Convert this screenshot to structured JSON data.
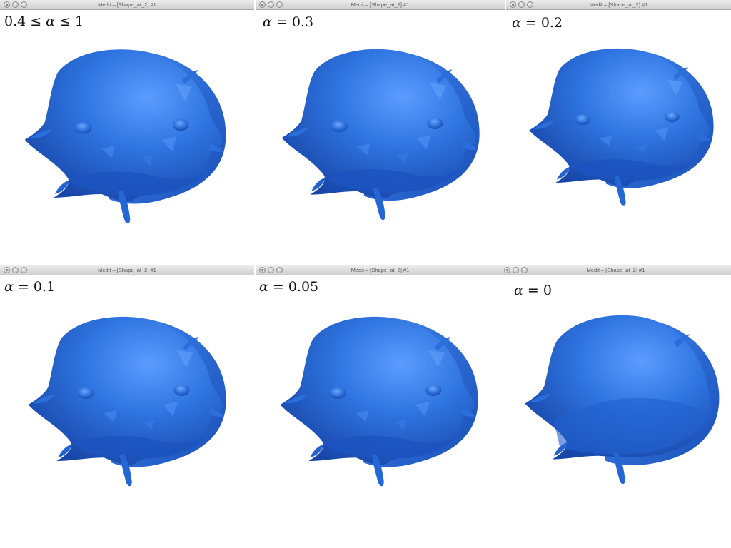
{
  "window_title": "Medit – [Shape_at_2] #1",
  "shape_color": "#2f74e0",
  "panels": [
    {
      "label_pre": "0.4 ≤ ",
      "label_var": "α",
      "label_post": " ≤ 1"
    },
    {
      "label_pre": "",
      "label_var": "α",
      "label_post": " = 0.3"
    },
    {
      "label_pre": "",
      "label_var": "α",
      "label_post": " = 0.2"
    },
    {
      "label_pre": "",
      "label_var": "α",
      "label_post": " = 0.1"
    },
    {
      "label_pre": "",
      "label_var": "α",
      "label_post": " = 0.05"
    },
    {
      "label_pre": "",
      "label_var": "α",
      "label_post": " = 0"
    }
  ]
}
